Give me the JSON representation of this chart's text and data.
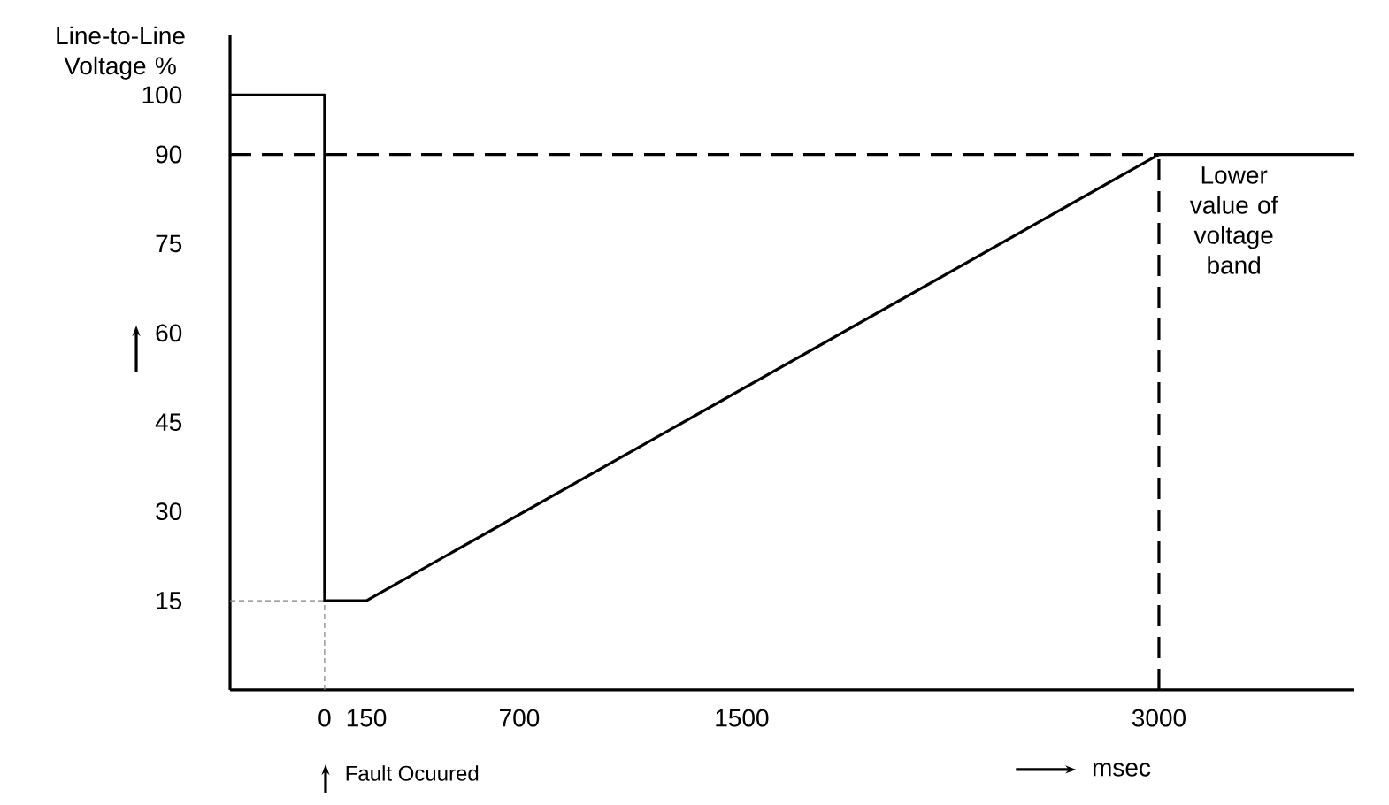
{
  "chart_data": {
    "type": "line",
    "ylabel": "Line-to-Line Voltage %",
    "xlabel": "msec",
    "x": [
      -340,
      0,
      0,
      150,
      3000,
      3700
    ],
    "series": [
      {
        "color": "#000000",
        "values": [
          100,
          100,
          15,
          15,
          90,
          90
        ]
      }
    ],
    "xlim": [
      -340,
      3700
    ],
    "ylim": [
      0,
      110
    ],
    "xticks": [
      0,
      150,
      700,
      1500,
      3000
    ],
    "yticks": [
      15,
      30,
      45,
      60,
      75,
      90,
      100
    ],
    "ref_lines": [
      {
        "axis": "y",
        "value": 90,
        "color": "#000000",
        "line_style": "dashed"
      },
      {
        "axis": "x",
        "value": 3000,
        "color": "#000000",
        "line_style": "dashed"
      },
      {
        "axis": "y",
        "value": 15,
        "color": "#808080",
        "line_style": "dotted"
      },
      {
        "axis": "x",
        "value": 0,
        "color": "#808080",
        "line_style": "dotted"
      }
    ],
    "annotations": [
      "Fault Ocuured",
      {
        "text": "Lower value of voltage band",
        "x": 3000,
        "y": 90
      }
    ],
    "grid": false,
    "line_style": "solid",
    "marker": "none"
  }
}
